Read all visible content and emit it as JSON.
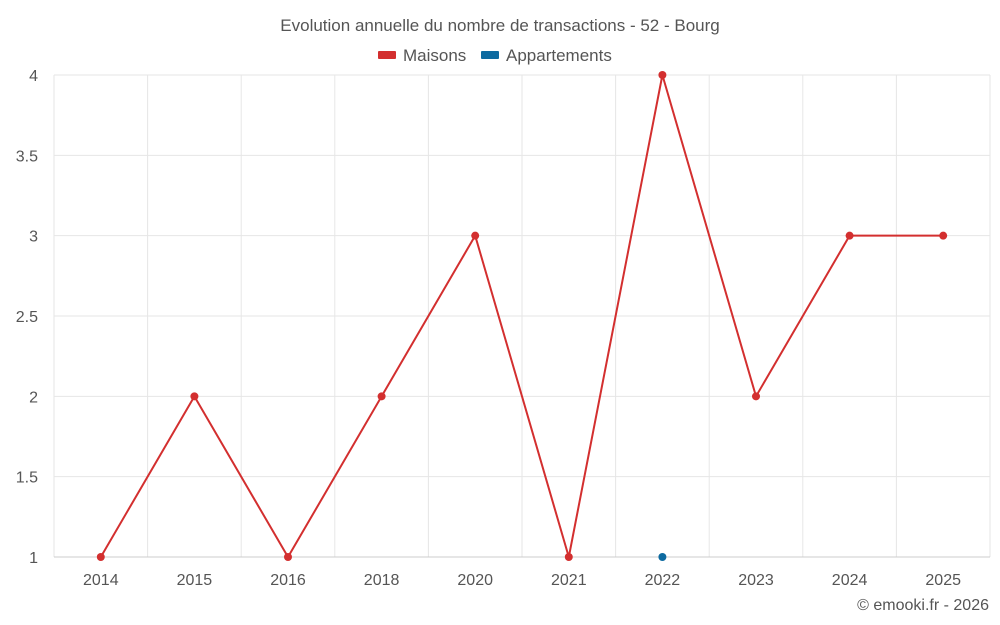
{
  "chart_data": {
    "type": "line",
    "title": "Evolution annuelle du nombre de transactions - 52 - Bourg",
    "xlabel": "",
    "ylabel": "",
    "categories": [
      "2014",
      "2015",
      "2016",
      "2018",
      "2020",
      "2021",
      "2022",
      "2023",
      "2024",
      "2025"
    ],
    "ylim": [
      1,
      4
    ],
    "yticks": [
      "1",
      "1.5",
      "2",
      "2.5",
      "3",
      "3.5",
      "4"
    ],
    "grid": true,
    "legend_position": "top-center",
    "series": [
      {
        "name": "Maisons",
        "color": "#d32f2f",
        "values": [
          1,
          2,
          1,
          2,
          3,
          1,
          4,
          2,
          3,
          3
        ]
      },
      {
        "name": "Appartements",
        "color": "#0d6aa0",
        "values": [
          null,
          null,
          null,
          null,
          null,
          null,
          1,
          null,
          null,
          null
        ]
      }
    ]
  },
  "credit": "© emooki.fr - 2026"
}
